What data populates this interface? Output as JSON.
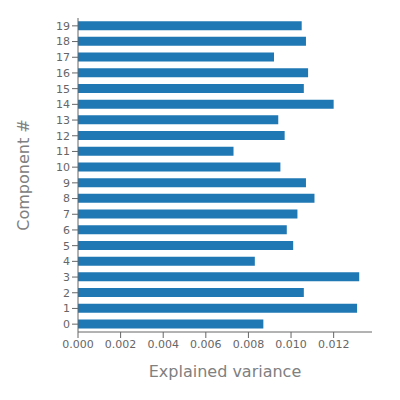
{
  "chart_data": {
    "type": "bar",
    "orientation": "horizontal",
    "categories": [
      "0",
      "1",
      "2",
      "3",
      "4",
      "5",
      "6",
      "7",
      "8",
      "9",
      "10",
      "11",
      "12",
      "13",
      "14",
      "15",
      "16",
      "17",
      "18",
      "19"
    ],
    "values": [
      0.0087,
      0.0131,
      0.0106,
      0.0132,
      0.0083,
      0.0101,
      0.0098,
      0.0103,
      0.0111,
      0.0107,
      0.0095,
      0.0073,
      0.0097,
      0.0094,
      0.012,
      0.0106,
      0.0108,
      0.0092,
      0.0107,
      0.0105
    ],
    "color": "#1f77b4",
    "xlabel": "Explained variance",
    "ylabel": "Component #",
    "xlim": [
      0,
      0.0138
    ],
    "xticks": [
      {
        "value": 0,
        "label": "0.000"
      },
      0.002,
      0.004,
      0.006,
      0.008,
      {
        "value": 0.01,
        "label": "0.010"
      },
      0.012
    ],
    "grid": false
  }
}
